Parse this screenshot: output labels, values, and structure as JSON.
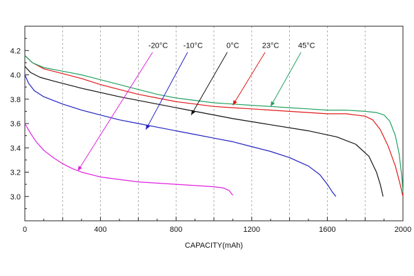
{
  "chart_data": {
    "type": "line",
    "title": "",
    "xlabel": "CAPACITY(mAh)",
    "ylabel": "",
    "xlim": [
      0,
      2000
    ],
    "ylim": [
      2.8,
      4.4
    ],
    "xticks": [
      0,
      400,
      800,
      1200,
      1600,
      2000
    ],
    "xtick_labels": [
      "0",
      "400",
      "800",
      "1200",
      "1600",
      "2000"
    ],
    "yticks": [
      3.0,
      3.2,
      3.4,
      3.6,
      3.8,
      4.0,
      4.2
    ],
    "ytick_labels": [
      "3.0",
      "3.2",
      "3.4",
      "3.6",
      "3.8",
      "4.0",
      "4.2"
    ],
    "grid": "x-dashed",
    "legend": "annotations with arrows, top",
    "series": [
      {
        "name": "-20°C",
        "color": "#e020e0",
        "label_x": 705,
        "label_y": 4.22,
        "arrow_to": [
          280,
          3.21
        ],
        "x": [
          0,
          30,
          60,
          100,
          150,
          200,
          250,
          300,
          400,
          500,
          600,
          700,
          800,
          900,
          1000,
          1050,
          1080,
          1100
        ],
        "y": [
          3.6,
          3.52,
          3.45,
          3.38,
          3.32,
          3.27,
          3.23,
          3.2,
          3.16,
          3.14,
          3.12,
          3.11,
          3.1,
          3.09,
          3.08,
          3.07,
          3.05,
          3.01
        ]
      },
      {
        "name": "-10°C",
        "color": "#2020c0",
        "label_x": 890,
        "label_y": 4.22,
        "arrow_to": [
          640,
          3.55
        ],
        "x": [
          0,
          20,
          50,
          100,
          200,
          300,
          400,
          500,
          600,
          700,
          800,
          900,
          1000,
          1100,
          1200,
          1300,
          1400,
          1500,
          1560,
          1600,
          1625,
          1645
        ],
        "y": [
          4.0,
          3.93,
          3.87,
          3.82,
          3.76,
          3.71,
          3.67,
          3.63,
          3.6,
          3.57,
          3.54,
          3.51,
          3.48,
          3.45,
          3.41,
          3.37,
          3.32,
          3.25,
          3.18,
          3.1,
          3.04,
          3.0
        ]
      },
      {
        "name": "0°C",
        "color": "#111111",
        "label_x": 1100,
        "label_y": 4.22,
        "arrow_to": [
          880,
          3.67
        ],
        "x": [
          0,
          30,
          80,
          150,
          300,
          500,
          700,
          900,
          1100,
          1300,
          1500,
          1650,
          1750,
          1820,
          1860,
          1880,
          1895
        ],
        "y": [
          4.07,
          4.02,
          3.98,
          3.95,
          3.89,
          3.82,
          3.76,
          3.7,
          3.64,
          3.59,
          3.54,
          3.49,
          3.43,
          3.33,
          3.2,
          3.1,
          3.0
        ]
      },
      {
        "name": "23°C",
        "color": "#e01818",
        "label_x": 1300,
        "label_y": 4.22,
        "arrow_to": [
          1100,
          3.75
        ],
        "x": [
          0,
          40,
          100,
          200,
          300,
          400,
          500,
          600,
          700,
          800,
          900,
          1000,
          1100,
          1200,
          1300,
          1400,
          1500,
          1600,
          1700,
          1750,
          1800,
          1840,
          1880,
          1920,
          1960,
          1985,
          2000
        ],
        "y": [
          4.16,
          4.1,
          4.05,
          4.01,
          3.97,
          3.92,
          3.88,
          3.84,
          3.81,
          3.78,
          3.76,
          3.74,
          3.73,
          3.72,
          3.71,
          3.7,
          3.69,
          3.68,
          3.68,
          3.67,
          3.66,
          3.63,
          3.55,
          3.42,
          3.25,
          3.1,
          3.0
        ]
      },
      {
        "name": "45°C",
        "color": "#20a060",
        "label_x": 1490,
        "label_y": 4.22,
        "arrow_to": [
          1300,
          3.74
        ],
        "x": [
          0,
          40,
          100,
          200,
          300,
          400,
          500,
          600,
          700,
          800,
          900,
          1000,
          1100,
          1200,
          1300,
          1400,
          1500,
          1600,
          1700,
          1800,
          1860,
          1900,
          1930,
          1960,
          1980,
          1995,
          2000
        ],
        "y": [
          4.16,
          4.1,
          4.06,
          4.03,
          4.0,
          3.96,
          3.92,
          3.88,
          3.84,
          3.81,
          3.79,
          3.77,
          3.76,
          3.75,
          3.74,
          3.73,
          3.72,
          3.71,
          3.71,
          3.7,
          3.69,
          3.67,
          3.62,
          3.5,
          3.35,
          3.15,
          3.03
        ]
      }
    ]
  }
}
